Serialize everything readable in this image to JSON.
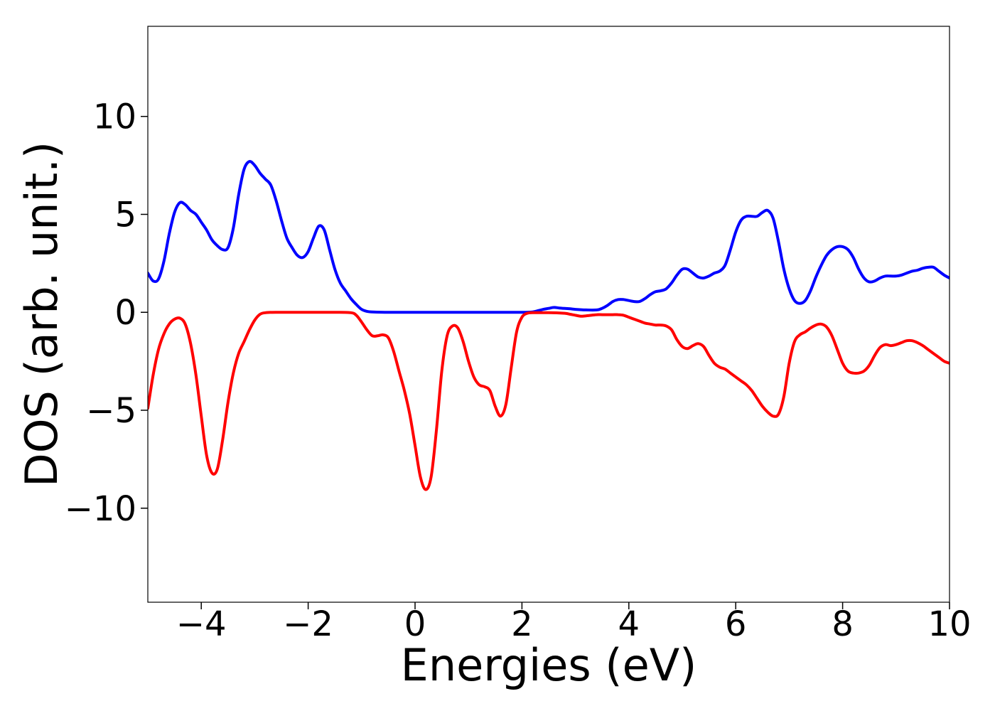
{
  "chart_data": {
    "type": "line",
    "title": "",
    "xlabel": "Energies (eV)",
    "ylabel": "DOS (arb. unit.)",
    "xlim": [
      -5,
      10
    ],
    "ylim": [
      -14.8,
      14.6
    ],
    "xticks": [
      -4,
      -2,
      0,
      2,
      4,
      6,
      8,
      10
    ],
    "xtick_labels": [
      "−4",
      "−2",
      "0",
      "2",
      "4",
      "6",
      "8",
      "10"
    ],
    "yticks": [
      -10,
      -5,
      0,
      5,
      10
    ],
    "ytick_labels": [
      "−10",
      "−5",
      "0",
      "5",
      "10"
    ],
    "grid": false,
    "legend": "none",
    "series": [
      {
        "color": "#0000ff",
        "points": [
          [
            -5.0,
            2.0
          ],
          [
            -4.9,
            1.6
          ],
          [
            -4.8,
            1.7
          ],
          [
            -4.7,
            2.6
          ],
          [
            -4.6,
            4.0
          ],
          [
            -4.5,
            5.1
          ],
          [
            -4.4,
            5.6
          ],
          [
            -4.3,
            5.5
          ],
          [
            -4.2,
            5.2
          ],
          [
            -4.1,
            5.0
          ],
          [
            -4.0,
            4.6
          ],
          [
            -3.9,
            4.2
          ],
          [
            -3.8,
            3.7
          ],
          [
            -3.7,
            3.4
          ],
          [
            -3.6,
            3.2
          ],
          [
            -3.5,
            3.3
          ],
          [
            -3.4,
            4.3
          ],
          [
            -3.3,
            6.0
          ],
          [
            -3.2,
            7.3
          ],
          [
            -3.1,
            7.7
          ],
          [
            -3.0,
            7.5
          ],
          [
            -2.9,
            7.1
          ],
          [
            -2.8,
            6.8
          ],
          [
            -2.7,
            6.5
          ],
          [
            -2.6,
            5.7
          ],
          [
            -2.5,
            4.7
          ],
          [
            -2.4,
            3.8
          ],
          [
            -2.3,
            3.3
          ],
          [
            -2.2,
            2.9
          ],
          [
            -2.1,
            2.8
          ],
          [
            -2.0,
            3.1
          ],
          [
            -1.9,
            3.8
          ],
          [
            -1.8,
            4.4
          ],
          [
            -1.7,
            4.2
          ],
          [
            -1.6,
            3.2
          ],
          [
            -1.5,
            2.2
          ],
          [
            -1.4,
            1.5
          ],
          [
            -1.3,
            1.1
          ],
          [
            -1.2,
            0.7
          ],
          [
            -1.1,
            0.4
          ],
          [
            -1.0,
            0.15
          ],
          [
            -0.9,
            0.05
          ],
          [
            -0.8,
            0.02
          ],
          [
            -0.5,
            0.0
          ],
          [
            0.0,
            0.0
          ],
          [
            0.5,
            0.0
          ],
          [
            1.0,
            0.0
          ],
          [
            1.5,
            0.0
          ],
          [
            2.0,
            0.0
          ],
          [
            2.2,
            0.02
          ],
          [
            2.3,
            0.08
          ],
          [
            2.4,
            0.15
          ],
          [
            2.5,
            0.2
          ],
          [
            2.6,
            0.25
          ],
          [
            2.7,
            0.22
          ],
          [
            2.8,
            0.2
          ],
          [
            2.9,
            0.18
          ],
          [
            3.0,
            0.15
          ],
          [
            3.2,
            0.12
          ],
          [
            3.4,
            0.12
          ],
          [
            3.5,
            0.2
          ],
          [
            3.6,
            0.35
          ],
          [
            3.7,
            0.55
          ],
          [
            3.8,
            0.65
          ],
          [
            3.9,
            0.65
          ],
          [
            4.0,
            0.6
          ],
          [
            4.1,
            0.55
          ],
          [
            4.2,
            0.55
          ],
          [
            4.3,
            0.7
          ],
          [
            4.4,
            0.9
          ],
          [
            4.5,
            1.05
          ],
          [
            4.6,
            1.1
          ],
          [
            4.7,
            1.2
          ],
          [
            4.8,
            1.5
          ],
          [
            4.9,
            1.9
          ],
          [
            5.0,
            2.2
          ],
          [
            5.1,
            2.2
          ],
          [
            5.2,
            2.0
          ],
          [
            5.3,
            1.8
          ],
          [
            5.4,
            1.75
          ],
          [
            5.5,
            1.85
          ],
          [
            5.6,
            2.0
          ],
          [
            5.7,
            2.1
          ],
          [
            5.8,
            2.4
          ],
          [
            5.9,
            3.2
          ],
          [
            6.0,
            4.1
          ],
          [
            6.1,
            4.7
          ],
          [
            6.2,
            4.9
          ],
          [
            6.3,
            4.9
          ],
          [
            6.4,
            4.9
          ],
          [
            6.5,
            5.1
          ],
          [
            6.6,
            5.2
          ],
          [
            6.7,
            4.8
          ],
          [
            6.8,
            3.6
          ],
          [
            6.9,
            2.2
          ],
          [
            7.0,
            1.2
          ],
          [
            7.1,
            0.6
          ],
          [
            7.2,
            0.45
          ],
          [
            7.3,
            0.6
          ],
          [
            7.4,
            1.1
          ],
          [
            7.5,
            1.8
          ],
          [
            7.6,
            2.4
          ],
          [
            7.7,
            2.9
          ],
          [
            7.8,
            3.2
          ],
          [
            7.9,
            3.35
          ],
          [
            8.0,
            3.35
          ],
          [
            8.1,
            3.2
          ],
          [
            8.2,
            2.8
          ],
          [
            8.3,
            2.2
          ],
          [
            8.4,
            1.75
          ],
          [
            8.5,
            1.55
          ],
          [
            8.6,
            1.6
          ],
          [
            8.7,
            1.75
          ],
          [
            8.8,
            1.85
          ],
          [
            8.9,
            1.85
          ],
          [
            9.0,
            1.85
          ],
          [
            9.1,
            1.9
          ],
          [
            9.2,
            2.0
          ],
          [
            9.3,
            2.1
          ],
          [
            9.4,
            2.15
          ],
          [
            9.5,
            2.25
          ],
          [
            9.6,
            2.3
          ],
          [
            9.7,
            2.3
          ],
          [
            9.8,
            2.1
          ],
          [
            9.9,
            1.9
          ],
          [
            10.0,
            1.75
          ]
        ]
      },
      {
        "color": "#ff0000",
        "points": [
          [
            -5.0,
            -4.9
          ],
          [
            -4.9,
            -3.2
          ],
          [
            -4.8,
            -1.9
          ],
          [
            -4.7,
            -1.1
          ],
          [
            -4.6,
            -0.6
          ],
          [
            -4.5,
            -0.35
          ],
          [
            -4.4,
            -0.3
          ],
          [
            -4.3,
            -0.6
          ],
          [
            -4.2,
            -1.6
          ],
          [
            -4.1,
            -3.2
          ],
          [
            -4.0,
            -5.3
          ],
          [
            -3.9,
            -7.3
          ],
          [
            -3.8,
            -8.2
          ],
          [
            -3.7,
            -8.0
          ],
          [
            -3.6,
            -6.5
          ],
          [
            -3.5,
            -4.6
          ],
          [
            -3.4,
            -3.1
          ],
          [
            -3.3,
            -2.1
          ],
          [
            -3.2,
            -1.5
          ],
          [
            -3.1,
            -0.9
          ],
          [
            -3.0,
            -0.4
          ],
          [
            -2.9,
            -0.1
          ],
          [
            -2.8,
            -0.02
          ],
          [
            -2.6,
            0.0
          ],
          [
            -2.0,
            0.0
          ],
          [
            -1.5,
            0.0
          ],
          [
            -1.2,
            -0.02
          ],
          [
            -1.1,
            -0.15
          ],
          [
            -1.0,
            -0.5
          ],
          [
            -0.9,
            -0.9
          ],
          [
            -0.8,
            -1.2
          ],
          [
            -0.7,
            -1.2
          ],
          [
            -0.6,
            -1.15
          ],
          [
            -0.5,
            -1.3
          ],
          [
            -0.4,
            -2.0
          ],
          [
            -0.3,
            -3.0
          ],
          [
            -0.2,
            -4.0
          ],
          [
            -0.1,
            -5.2
          ],
          [
            0.0,
            -6.8
          ],
          [
            0.1,
            -8.4
          ],
          [
            0.2,
            -9.05
          ],
          [
            0.3,
            -8.4
          ],
          [
            0.4,
            -6.0
          ],
          [
            0.5,
            -3.0
          ],
          [
            0.6,
            -1.2
          ],
          [
            0.7,
            -0.7
          ],
          [
            0.8,
            -0.8
          ],
          [
            0.9,
            -1.5
          ],
          [
            1.0,
            -2.5
          ],
          [
            1.1,
            -3.3
          ],
          [
            1.2,
            -3.7
          ],
          [
            1.3,
            -3.8
          ],
          [
            1.4,
            -4.0
          ],
          [
            1.5,
            -4.8
          ],
          [
            1.6,
            -5.3
          ],
          [
            1.7,
            -4.7
          ],
          [
            1.8,
            -2.8
          ],
          [
            1.9,
            -1.0
          ],
          [
            2.0,
            -0.25
          ],
          [
            2.1,
            -0.05
          ],
          [
            2.2,
            -0.02
          ],
          [
            2.5,
            -0.02
          ],
          [
            2.8,
            -0.05
          ],
          [
            2.9,
            -0.1
          ],
          [
            3.0,
            -0.15
          ],
          [
            3.1,
            -0.2
          ],
          [
            3.2,
            -0.18
          ],
          [
            3.3,
            -0.15
          ],
          [
            3.4,
            -0.12
          ],
          [
            3.5,
            -0.12
          ],
          [
            3.6,
            -0.12
          ],
          [
            3.7,
            -0.12
          ],
          [
            3.8,
            -0.12
          ],
          [
            3.9,
            -0.15
          ],
          [
            4.0,
            -0.25
          ],
          [
            4.1,
            -0.35
          ],
          [
            4.2,
            -0.45
          ],
          [
            4.3,
            -0.55
          ],
          [
            4.4,
            -0.6
          ],
          [
            4.5,
            -0.65
          ],
          [
            4.6,
            -0.65
          ],
          [
            4.7,
            -0.7
          ],
          [
            4.8,
            -0.9
          ],
          [
            4.9,
            -1.4
          ],
          [
            5.0,
            -1.75
          ],
          [
            5.1,
            -1.85
          ],
          [
            5.2,
            -1.7
          ],
          [
            5.3,
            -1.6
          ],
          [
            5.4,
            -1.75
          ],
          [
            5.5,
            -2.2
          ],
          [
            5.6,
            -2.6
          ],
          [
            5.7,
            -2.8
          ],
          [
            5.8,
            -2.9
          ],
          [
            5.9,
            -3.1
          ],
          [
            6.0,
            -3.3
          ],
          [
            6.1,
            -3.5
          ],
          [
            6.2,
            -3.7
          ],
          [
            6.3,
            -4.0
          ],
          [
            6.4,
            -4.4
          ],
          [
            6.5,
            -4.8
          ],
          [
            6.6,
            -5.1
          ],
          [
            6.7,
            -5.3
          ],
          [
            6.8,
            -5.2
          ],
          [
            6.9,
            -4.3
          ],
          [
            7.0,
            -2.6
          ],
          [
            7.1,
            -1.5
          ],
          [
            7.2,
            -1.15
          ],
          [
            7.3,
            -1.0
          ],
          [
            7.4,
            -0.8
          ],
          [
            7.5,
            -0.65
          ],
          [
            7.6,
            -0.6
          ],
          [
            7.7,
            -0.75
          ],
          [
            7.8,
            -1.2
          ],
          [
            7.9,
            -1.9
          ],
          [
            8.0,
            -2.6
          ],
          [
            8.1,
            -3.0
          ],
          [
            8.2,
            -3.1
          ],
          [
            8.3,
            -3.1
          ],
          [
            8.4,
            -3.0
          ],
          [
            8.5,
            -2.7
          ],
          [
            8.6,
            -2.2
          ],
          [
            8.7,
            -1.8
          ],
          [
            8.8,
            -1.65
          ],
          [
            8.9,
            -1.7
          ],
          [
            9.0,
            -1.65
          ],
          [
            9.1,
            -1.55
          ],
          [
            9.2,
            -1.45
          ],
          [
            9.3,
            -1.45
          ],
          [
            9.4,
            -1.55
          ],
          [
            9.5,
            -1.7
          ],
          [
            9.6,
            -1.9
          ],
          [
            9.7,
            -2.1
          ],
          [
            9.8,
            -2.3
          ],
          [
            9.9,
            -2.5
          ],
          [
            10.0,
            -2.6
          ]
        ]
      }
    ]
  }
}
